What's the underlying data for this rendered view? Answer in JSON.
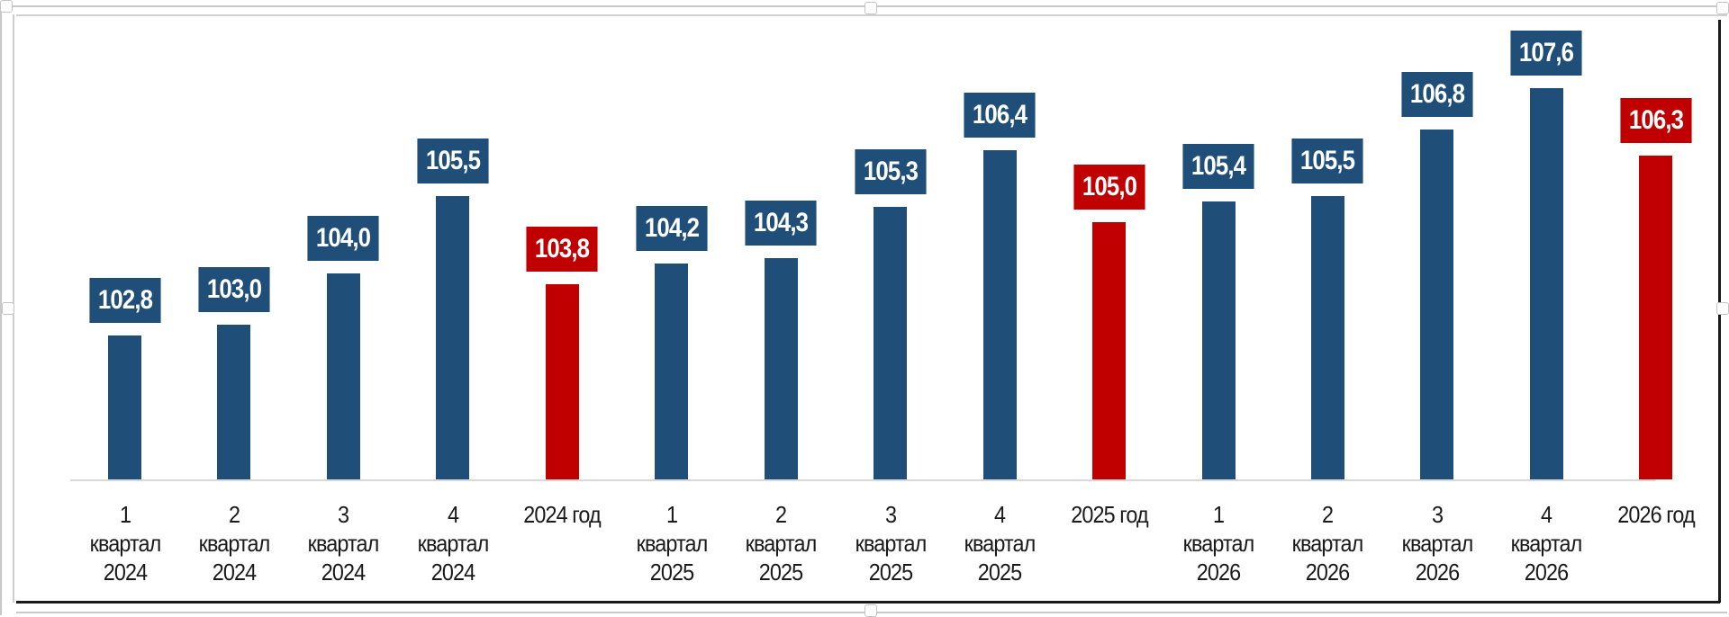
{
  "colors": {
    "quarter_bar": "#1f4e79",
    "year_bar": "#c00000",
    "label_text": "#ffffff",
    "axis_text": "#1a1a1a",
    "baseline": "#d9d9d9"
  },
  "chart_data": {
    "type": "bar",
    "title": "",
    "xlabel": "",
    "ylabel": "",
    "ylim": [
      100,
      108
    ],
    "grid": false,
    "legend": null,
    "categories": [
      "1 квартал 2024",
      "2 квартал 2024",
      "3 квартал 2024",
      "4 квартал 2024",
      "2024 год",
      "1 квартал 2025",
      "2 квартал 2025",
      "3 квартал 2025",
      "4 квартал 2025",
      "2025 год",
      "1 квартал 2026",
      "2 квартал 2026",
      "3 квартал 2026",
      "4 квартал 2026",
      "2026 год"
    ],
    "values": [
      102.8,
      103.0,
      104.0,
      105.5,
      103.8,
      104.2,
      104.3,
      105.3,
      106.4,
      105.0,
      105.4,
      105.5,
      106.8,
      107.6,
      106.3
    ],
    "value_labels": [
      "102,8",
      "103,0",
      "104,0",
      "105,5",
      "103,8",
      "104,2",
      "104,3",
      "105,3",
      "106,4",
      "105,0",
      "105,4",
      "105,5",
      "106,8",
      "107,6",
      "106,3"
    ],
    "bar_kinds": [
      "quarter",
      "quarter",
      "quarter",
      "quarter",
      "year",
      "quarter",
      "quarter",
      "quarter",
      "quarter",
      "year",
      "quarter",
      "quarter",
      "quarter",
      "quarter",
      "year"
    ]
  },
  "axis_labels": [
    {
      "line1": "1",
      "line2": "квартал",
      "line3": "2024"
    },
    {
      "line1": "2",
      "line2": "квартал",
      "line3": "2024"
    },
    {
      "line1": "3",
      "line2": "квартал",
      "line3": "2024"
    },
    {
      "line1": "4",
      "line2": "квартал",
      "line3": "2024"
    },
    {
      "line1": "2024 год",
      "line2": "",
      "line3": ""
    },
    {
      "line1": "1",
      "line2": "квартал",
      "line3": "2025"
    },
    {
      "line1": "2",
      "line2": "квартал",
      "line3": "2025"
    },
    {
      "line1": "3",
      "line2": "квартал",
      "line3": "2025"
    },
    {
      "line1": "4",
      "line2": "квартал",
      "line3": "2025"
    },
    {
      "line1": "2025 год",
      "line2": "",
      "line3": ""
    },
    {
      "line1": "1",
      "line2": "квартал",
      "line3": "2026"
    },
    {
      "line1": "2",
      "line2": "квартал",
      "line3": "2026"
    },
    {
      "line1": "3",
      "line2": "квартал",
      "line3": "2026"
    },
    {
      "line1": "4",
      "line2": "квартал",
      "line3": "2026"
    },
    {
      "line1": "2026 год",
      "line2": "",
      "line3": ""
    }
  ]
}
